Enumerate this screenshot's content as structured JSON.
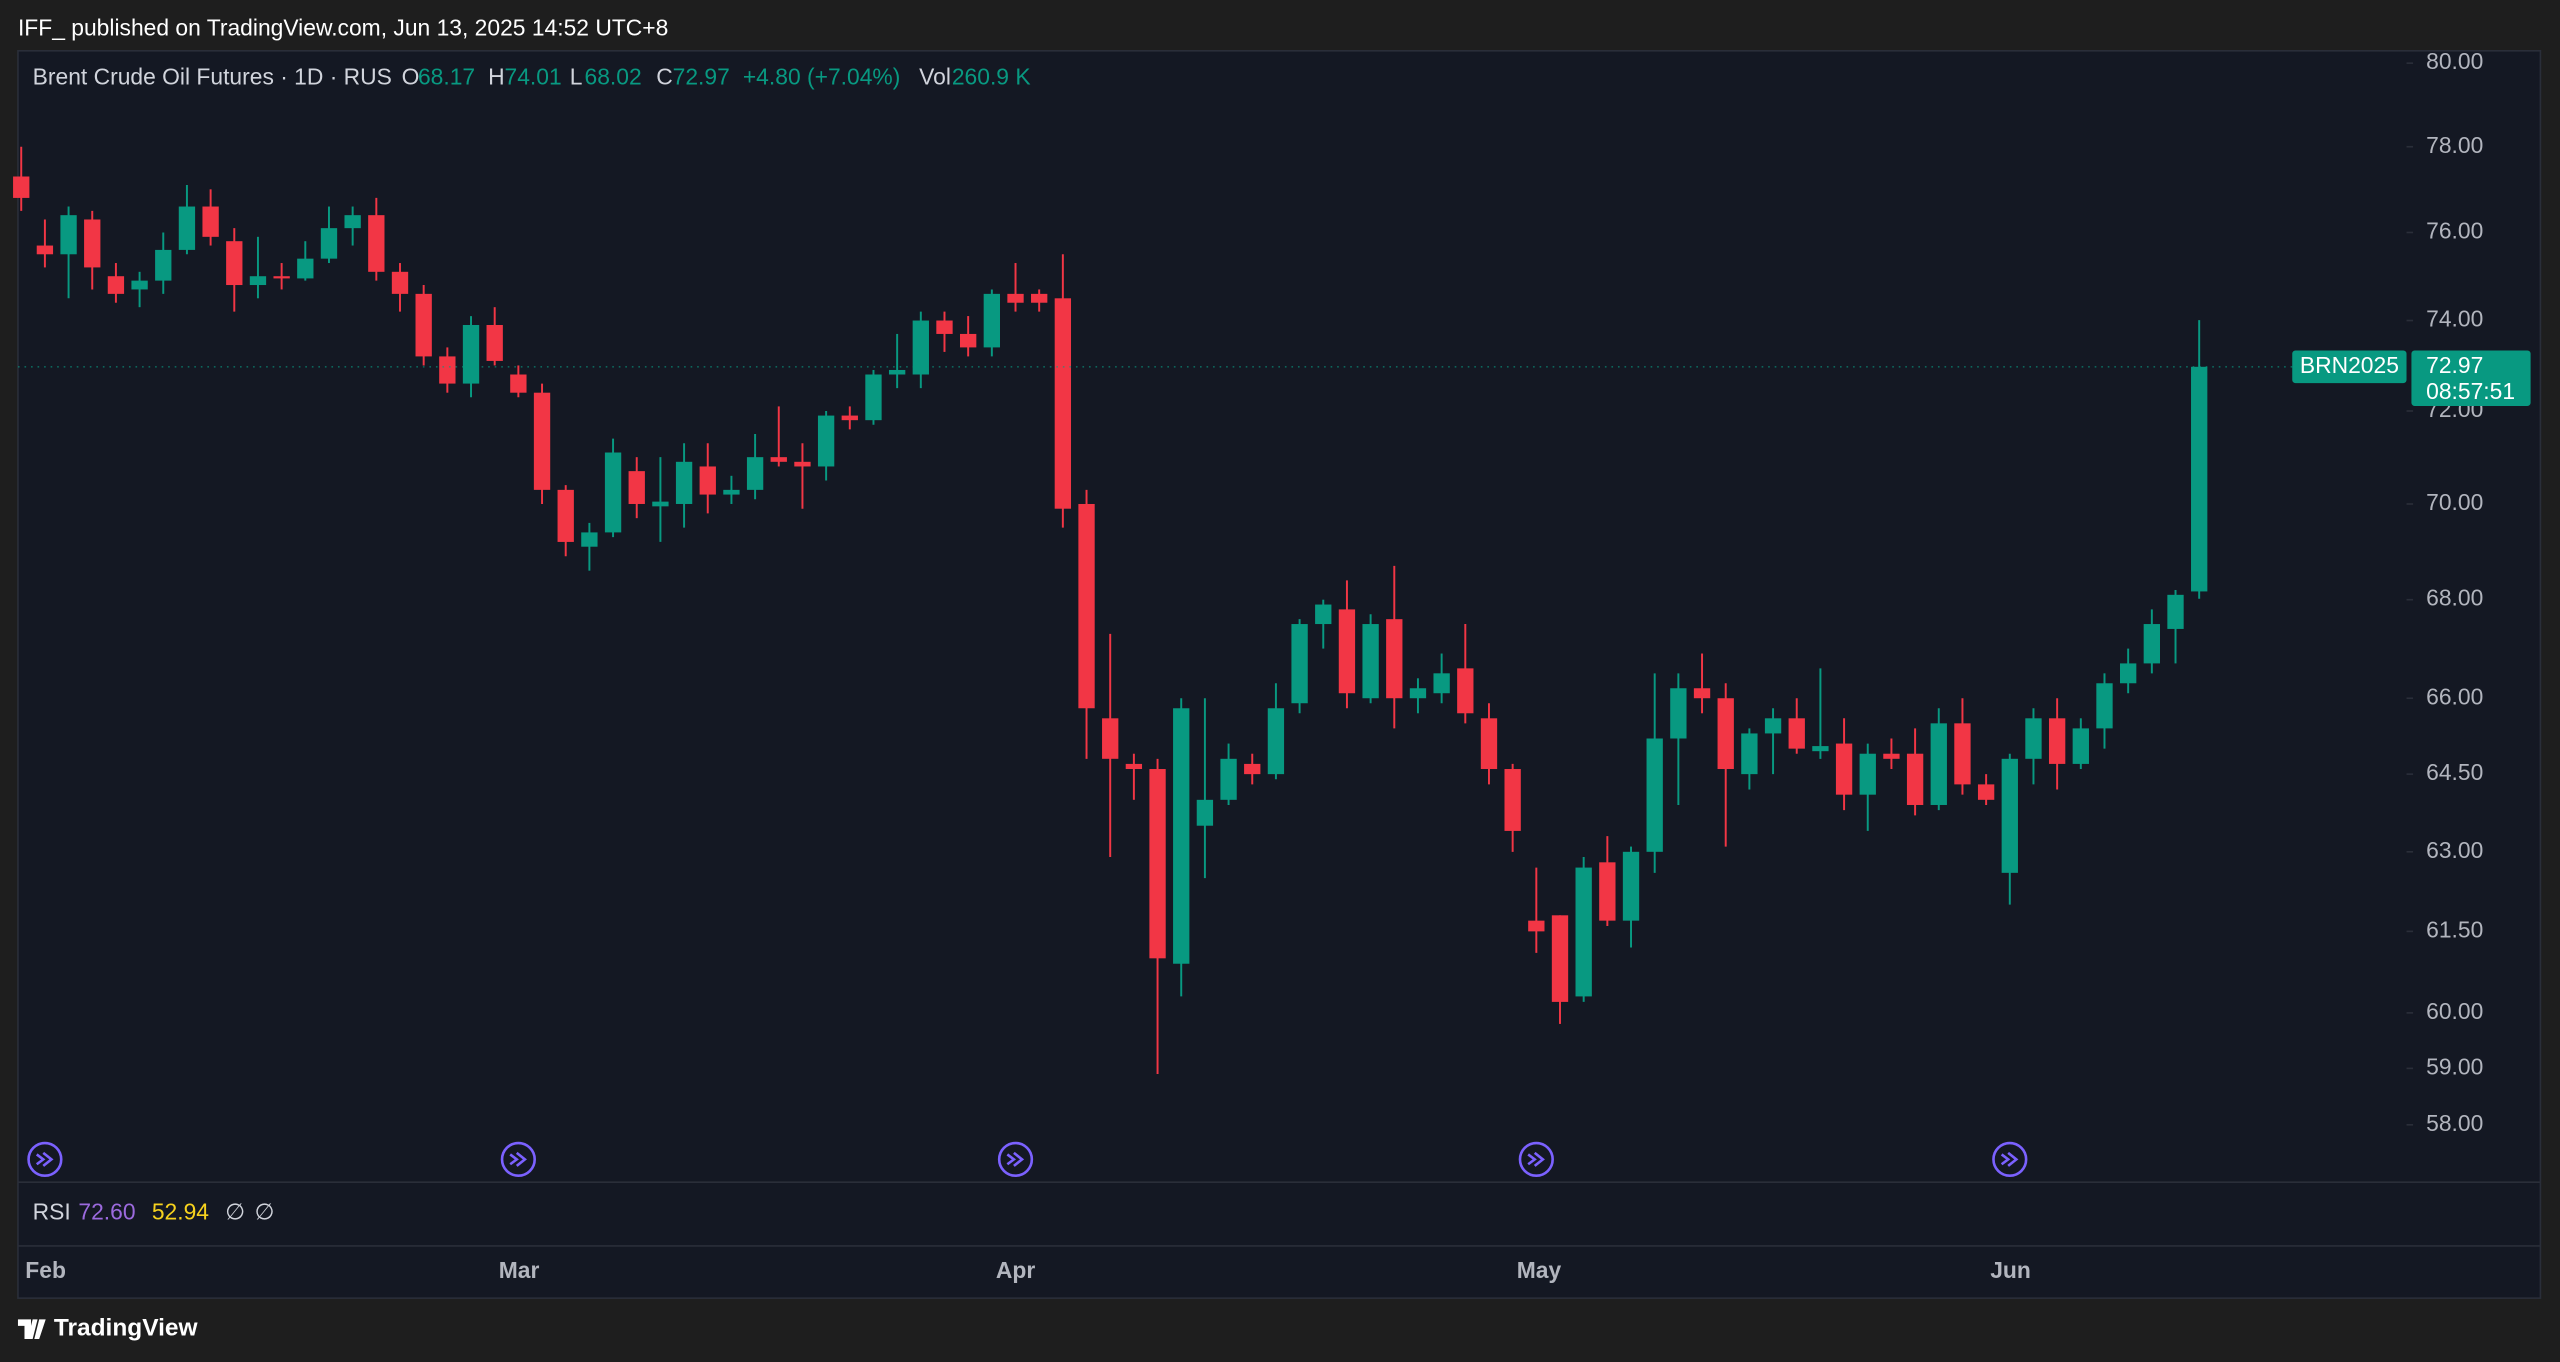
{
  "header": {
    "publisher": "IFF_ published on TradingView.com, Jun 13, 2025 14:52 UTC+8",
    "brand": "TradingView"
  },
  "chart_data": {
    "type": "candlestick",
    "title": "Brent Crude Oil Futures · 1D · RUS",
    "ohlc_labels": [
      "O",
      "H",
      "L",
      "C"
    ],
    "change": "+4.80 (+7.04%)",
    "volume_label": "Vol",
    "volume": "260.9 K",
    "categories": [
      null,
      "Feb",
      null,
      null,
      null,
      null,
      null,
      null,
      null,
      null,
      null,
      null,
      null,
      null,
      null,
      null,
      null,
      null,
      null,
      null,
      null,
      "Mar",
      null,
      null,
      null,
      null,
      null,
      null,
      null,
      null,
      null,
      null,
      null,
      null,
      null,
      null,
      null,
      null,
      null,
      null,
      null,
      null,
      "Apr",
      null,
      null,
      null,
      null,
      null,
      null,
      null,
      null,
      null,
      null,
      null,
      null,
      null,
      null,
      null,
      null,
      null,
      null,
      null,
      null,
      null,
      "May",
      null,
      null,
      null,
      null,
      null,
      null,
      null,
      null,
      null,
      null,
      null,
      null,
      null,
      null,
      null,
      null,
      null,
      null,
      null,
      "Jun",
      null,
      null,
      null,
      null,
      null,
      null,
      null,
      null
    ],
    "open": [
      77.3,
      75.7,
      75.5,
      76.3,
      75.0,
      74.7,
      74.9,
      75.6,
      76.6,
      75.8,
      74.8,
      75.0,
      74.95,
      75.4,
      76.1,
      76.4,
      75.1,
      74.6,
      73.2,
      72.6,
      73.9,
      72.8,
      72.4,
      70.3,
      69.1,
      69.4,
      70.7,
      69.95,
      70.0,
      70.8,
      70.2,
      70.3,
      71.0,
      70.9,
      70.8,
      71.9,
      71.8,
      72.8,
      72.8,
      74.0,
      73.7,
      73.4,
      74.6,
      74.6,
      74.5,
      70.0,
      65.6,
      64.7,
      64.6,
      60.9,
      63.5,
      64.0,
      64.7,
      64.5,
      65.9,
      67.5,
      67.8,
      66.0,
      67.6,
      66.0,
      66.1,
      66.6,
      65.6,
      64.6,
      61.7,
      61.8,
      60.3,
      62.8,
      61.7,
      63.0,
      65.2,
      66.2,
      66.0,
      64.5,
      65.3,
      65.6,
      64.95,
      65.1,
      64.1,
      64.9,
      64.9,
      63.9,
      65.5,
      64.3,
      62.6,
      64.8,
      65.6,
      64.7,
      65.4,
      66.3,
      66.7,
      67.4,
      68.17
    ],
    "high": [
      78.0,
      76.3,
      76.6,
      76.5,
      75.3,
      75.1,
      76.0,
      77.1,
      77.0,
      76.1,
      75.9,
      75.3,
      75.8,
      76.6,
      76.6,
      76.8,
      75.3,
      74.8,
      73.4,
      74.1,
      74.3,
      73.0,
      72.6,
      70.4,
      69.6,
      71.4,
      71.0,
      71.0,
      71.3,
      71.3,
      70.6,
      71.5,
      72.1,
      71.3,
      72.0,
      72.1,
      72.9,
      73.7,
      74.2,
      74.2,
      74.1,
      74.7,
      75.3,
      74.7,
      75.5,
      70.3,
      67.3,
      64.9,
      64.8,
      66.0,
      66.0,
      65.1,
      64.9,
      66.3,
      67.6,
      68.0,
      68.4,
      67.7,
      68.7,
      66.4,
      66.9,
      67.5,
      65.9,
      64.7,
      62.7,
      61.8,
      62.9,
      63.3,
      63.1,
      66.5,
      66.5,
      66.9,
      66.3,
      65.4,
      65.8,
      66.0,
      66.6,
      65.6,
      65.1,
      65.2,
      65.4,
      65.8,
      66.0,
      64.5,
      64.9,
      65.8,
      66.0,
      65.6,
      66.5,
      67.0,
      67.8,
      68.2,
      74.01
    ],
    "low": [
      76.5,
      75.2,
      74.5,
      74.7,
      74.4,
      74.3,
      74.6,
      75.5,
      75.7,
      74.2,
      74.5,
      74.7,
      74.9,
      75.3,
      75.7,
      74.9,
      74.2,
      73.0,
      72.4,
      72.3,
      73.0,
      72.3,
      70.0,
      68.9,
      68.6,
      69.3,
      69.7,
      69.2,
      69.5,
      69.8,
      70.0,
      70.1,
      70.8,
      69.9,
      70.5,
      71.6,
      71.7,
      72.5,
      72.5,
      73.3,
      73.2,
      73.2,
      74.2,
      74.2,
      69.5,
      64.8,
      62.9,
      64.0,
      58.9,
      60.3,
      62.5,
      63.9,
      64.3,
      64.4,
      65.7,
      67.0,
      65.8,
      65.9,
      65.4,
      65.7,
      65.9,
      65.5,
      64.3,
      63.0,
      61.1,
      59.8,
      60.2,
      61.6,
      61.2,
      62.6,
      63.9,
      65.7,
      63.1,
      64.2,
      64.5,
      64.9,
      64.8,
      63.8,
      63.4,
      64.6,
      63.7,
      63.8,
      64.1,
      63.9,
      62.0,
      64.3,
      64.2,
      64.6,
      65.0,
      66.1,
      66.5,
      66.7,
      68.02
    ],
    "close": [
      76.8,
      75.5,
      76.4,
      75.2,
      74.6,
      74.9,
      75.6,
      76.6,
      75.9,
      74.8,
      75.0,
      74.95,
      75.4,
      76.1,
      76.4,
      75.1,
      74.6,
      73.2,
      72.6,
      73.9,
      73.1,
      72.4,
      70.3,
      69.2,
      69.4,
      71.1,
      70.0,
      70.05,
      70.9,
      70.2,
      70.3,
      71.0,
      70.9,
      70.8,
      71.9,
      71.8,
      72.8,
      72.9,
      74.0,
      73.7,
      73.4,
      74.6,
      74.4,
      74.4,
      69.9,
      65.8,
      64.8,
      64.6,
      61.0,
      65.8,
      64.0,
      64.8,
      64.5,
      65.8,
      67.5,
      67.9,
      66.1,
      67.5,
      66.0,
      66.2,
      66.5,
      65.7,
      64.6,
      63.4,
      61.5,
      60.2,
      62.7,
      61.7,
      63.0,
      65.2,
      66.2,
      66.0,
      64.6,
      65.3,
      65.6,
      65.0,
      65.05,
      64.1,
      64.9,
      64.8,
      63.9,
      65.5,
      64.3,
      64.0,
      64.8,
      65.6,
      64.7,
      65.4,
      66.3,
      66.7,
      67.5,
      68.1,
      72.97
    ],
    "up_color": "#089981",
    "down_color": "#f23645",
    "log_scale": true,
    "ylim": [
      57,
      80.3
    ],
    "yticks": [
      {
        "value": 58,
        "label": "58.00"
      },
      {
        "value": 59,
        "label": "59.00"
      },
      {
        "value": 60,
        "label": "60.00"
      },
      {
        "value": 61.5,
        "label": "61.50"
      },
      {
        "value": 63,
        "label": "63.00"
      },
      {
        "value": 64.5,
        "label": "64.50"
      },
      {
        "value": 66,
        "label": "66.00"
      },
      {
        "value": 68,
        "label": "68.00"
      },
      {
        "value": 70,
        "label": "70.00"
      },
      {
        "value": 72,
        "label": "72.00"
      },
      {
        "value": 74,
        "label": "74.00"
      },
      {
        "value": 76,
        "label": "76.00"
      },
      {
        "value": 78,
        "label": "78.00"
      },
      {
        "value": 80,
        "label": "80.00"
      }
    ],
    "last_price_tag": {
      "symbol": "BRN2025",
      "countdown": "08:57:51"
    },
    "indicator": {
      "name": "RSI",
      "values": [
        "72.60",
        "52.94"
      ],
      "flags": [
        "∅",
        "∅"
      ]
    }
  }
}
